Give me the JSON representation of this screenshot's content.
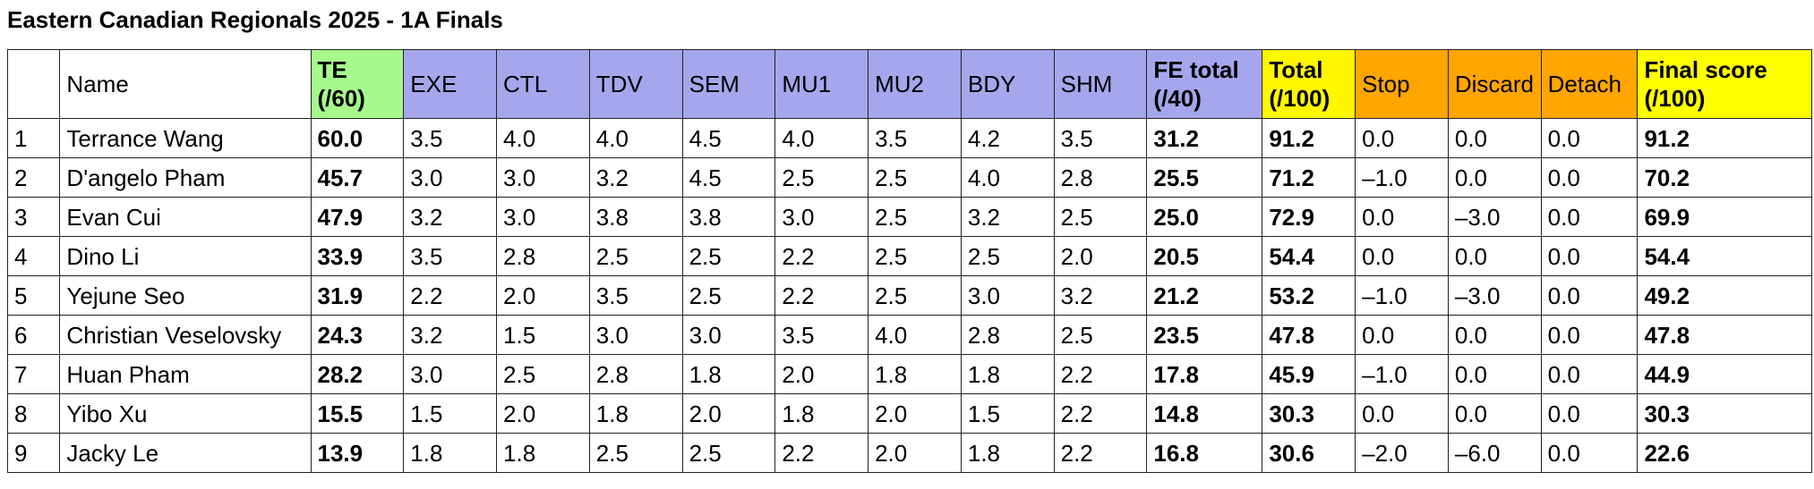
{
  "title": "Eastern Canadian Regionals 2025 - 1A Finals",
  "colors": {
    "te_header": "#a6fa8c",
    "fe_header": "#a6a6ed",
    "total_header": "#fff700",
    "penalty_header": "#ffa500",
    "final_header": "#ffff00",
    "border": "#222222"
  },
  "header": {
    "rank": "",
    "name": "Name",
    "te": "TE (/60)",
    "exe": "EXE",
    "ctl": "CTL",
    "tdv": "TDV",
    "sem": "SEM",
    "mu1": "MU1",
    "mu2": "MU2",
    "bdy": "BDY",
    "shm": "SHM",
    "fe_total": "FE total (/40)",
    "total": "Total (/100)",
    "stop": "Stop",
    "discard": "Discard",
    "detach": "Detach",
    "final": "Final score (/100)"
  },
  "rows": [
    {
      "rank": "1",
      "name": "Terrance Wang",
      "te": "60.0",
      "exe": "3.5",
      "ctl": "4.0",
      "tdv": "4.0",
      "sem": "4.5",
      "mu1": "4.0",
      "mu2": "3.5",
      "bdy": "4.2",
      "shm": "3.5",
      "fe_total": "31.2",
      "total": "91.2",
      "stop": "0.0",
      "discard": "0.0",
      "detach": "0.0",
      "final": "91.2"
    },
    {
      "rank": "2",
      "name": "D'angelo Pham",
      "te": "45.7",
      "exe": "3.0",
      "ctl": "3.0",
      "tdv": "3.2",
      "sem": "4.5",
      "mu1": "2.5",
      "mu2": "2.5",
      "bdy": "4.0",
      "shm": "2.8",
      "fe_total": "25.5",
      "total": "71.2",
      "stop": "–1.0",
      "discard": "0.0",
      "detach": "0.0",
      "final": "70.2"
    },
    {
      "rank": "3",
      "name": "Evan Cui",
      "te": "47.9",
      "exe": "3.2",
      "ctl": "3.0",
      "tdv": "3.8",
      "sem": "3.8",
      "mu1": "3.0",
      "mu2": "2.5",
      "bdy": "3.2",
      "shm": "2.5",
      "fe_total": "25.0",
      "total": "72.9",
      "stop": "0.0",
      "discard": "–3.0",
      "detach": "0.0",
      "final": "69.9"
    },
    {
      "rank": "4",
      "name": "Dino Li",
      "te": "33.9",
      "exe": "3.5",
      "ctl": "2.8",
      "tdv": "2.5",
      "sem": "2.5",
      "mu1": "2.2",
      "mu2": "2.5",
      "bdy": "2.5",
      "shm": "2.0",
      "fe_total": "20.5",
      "total": "54.4",
      "stop": "0.0",
      "discard": "0.0",
      "detach": "0.0",
      "final": "54.4"
    },
    {
      "rank": "5",
      "name": "Yejune Seo",
      "te": "31.9",
      "exe": "2.2",
      "ctl": "2.0",
      "tdv": "3.5",
      "sem": "2.5",
      "mu1": "2.2",
      "mu2": "2.5",
      "bdy": "3.0",
      "shm": "3.2",
      "fe_total": "21.2",
      "total": "53.2",
      "stop": "–1.0",
      "discard": "–3.0",
      "detach": "0.0",
      "final": "49.2"
    },
    {
      "rank": "6",
      "name": "Christian Veselovsky",
      "te": "24.3",
      "exe": "3.2",
      "ctl": "1.5",
      "tdv": "3.0",
      "sem": "3.0",
      "mu1": "3.5",
      "mu2": "4.0",
      "bdy": "2.8",
      "shm": "2.5",
      "fe_total": "23.5",
      "total": "47.8",
      "stop": "0.0",
      "discard": "0.0",
      "detach": "0.0",
      "final": "47.8"
    },
    {
      "rank": "7",
      "name": "Huan Pham",
      "te": "28.2",
      "exe": "3.0",
      "ctl": "2.5",
      "tdv": "2.8",
      "sem": "1.8",
      "mu1": "2.0",
      "mu2": "1.8",
      "bdy": "1.8",
      "shm": "2.2",
      "fe_total": "17.8",
      "total": "45.9",
      "stop": "–1.0",
      "discard": "0.0",
      "detach": "0.0",
      "final": "44.9"
    },
    {
      "rank": "8",
      "name": "Yibo Xu",
      "te": "15.5",
      "exe": "1.5",
      "ctl": "2.0",
      "tdv": "1.8",
      "sem": "2.0",
      "mu1": "1.8",
      "mu2": "2.0",
      "bdy": "1.5",
      "shm": "2.2",
      "fe_total": "14.8",
      "total": "30.3",
      "stop": "0.0",
      "discard": "0.0",
      "detach": "0.0",
      "final": "30.3"
    },
    {
      "rank": "9",
      "name": "Jacky Le",
      "te": "13.9",
      "exe": "1.8",
      "ctl": "1.8",
      "tdv": "2.5",
      "sem": "2.5",
      "mu1": "2.2",
      "mu2": "2.0",
      "bdy": "1.8",
      "shm": "2.2",
      "fe_total": "16.8",
      "total": "30.6",
      "stop": "–2.0",
      "discard": "–6.0",
      "detach": "0.0",
      "final": "22.6"
    }
  ]
}
